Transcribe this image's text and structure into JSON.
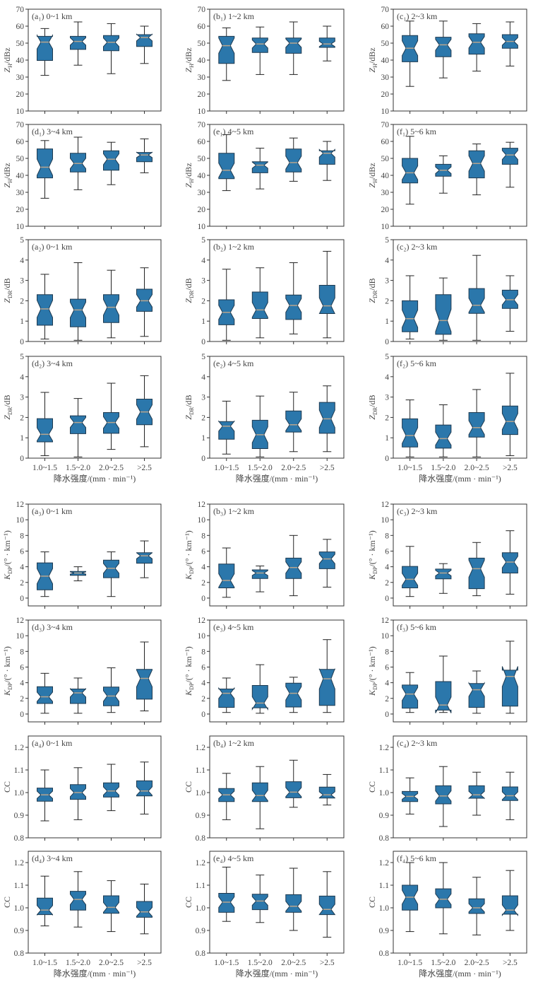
{
  "chart_data": {
    "type": "box",
    "categories": [
      "1.0~1.5",
      "1.5~2.0",
      "2.0~2.5",
      ">2.5"
    ],
    "xlabel": "降水强度/(mm · min⁻¹)",
    "stats_order": [
      "whisker_low",
      "q1",
      "median",
      "q3",
      "whisker_high"
    ],
    "box_color": "#2b77ab",
    "median_color": "#b8a58e",
    "variables": [
      {
        "ylabel": {
          "symbol": "Z",
          "sub": "H",
          "unit": "/dBz"
        },
        "ylim": [
          10,
          70
        ],
        "yticks": [
          "10",
          "20",
          "30",
          "40",
          "50",
          "60",
          "70"
        ]
      },
      {
        "ylabel": {
          "symbol": "Z",
          "sub": "DR",
          "unit": "/dB"
        },
        "ylim": [
          0,
          5
        ],
        "yticks": [
          "0",
          "1",
          "2",
          "3",
          "4",
          "5"
        ]
      },
      {
        "ylabel": {
          "symbol": "K",
          "sub": "DP",
          "unit": "/(° · km⁻¹)"
        },
        "ylim": [
          -1,
          12
        ],
        "yticks": [
          "0",
          "2",
          "4",
          "6",
          "8",
          "10",
          "12"
        ]
      },
      {
        "ylabel": {
          "symbol": "CC",
          "sub": "",
          "unit": ""
        },
        "ylim": [
          0.8,
          1.25
        ],
        "yticks": [
          "0.8",
          "0.9",
          "1.0",
          "1.1",
          "1.2"
        ]
      }
    ],
    "panels": [
      {
        "label": "(a₁) 0~1 km",
        "var": 0,
        "boxes": [
          [
            31,
            39.8,
            50.6,
            54,
            58.6
          ],
          [
            37,
            46.3,
            51,
            54,
            62.5
          ],
          [
            32,
            45.5,
            50.5,
            54.5,
            61.5
          ],
          [
            38,
            48,
            53.3,
            55,
            60
          ]
        ]
      },
      {
        "label": "(b₁) 1~2 km",
        "var": 0,
        "boxes": [
          [
            28,
            38,
            48.5,
            54,
            59
          ],
          [
            31.5,
            44.5,
            49.5,
            53,
            59.5
          ],
          [
            31.5,
            44,
            50,
            53,
            62.5
          ],
          [
            39.5,
            47.5,
            49.5,
            53,
            60
          ]
        ]
      },
      {
        "label": "(c₁) 2~3 km",
        "var": 0,
        "boxes": [
          [
            24.5,
            39,
            47,
            54.5,
            63
          ],
          [
            29.5,
            42,
            49,
            53.5,
            63
          ],
          [
            33.5,
            43.5,
            50.5,
            55.5,
            61.5
          ],
          [
            36.5,
            47,
            51,
            55,
            62.5
          ]
        ]
      },
      {
        "label": "(d₁) 3~4 km",
        "var": 0,
        "boxes": [
          [
            26.5,
            38.5,
            44.8,
            55.6,
            60.5
          ],
          [
            31.5,
            42,
            47,
            53,
            62.5
          ],
          [
            34.5,
            43,
            49.5,
            54.5,
            59.5
          ],
          [
            41.5,
            48,
            52,
            53.5,
            61.5
          ]
        ]
      },
      {
        "label": "(e₁) 4~5 km",
        "var": 0,
        "boxes": [
          [
            31,
            38,
            43,
            53,
            64
          ],
          [
            32,
            41.5,
            46,
            48,
            56
          ],
          [
            36.5,
            42,
            47.5,
            55.5,
            62
          ],
          [
            37,
            46.5,
            53,
            54.5,
            60
          ]
        ]
      },
      {
        "label": "(f₁) 5~6 km",
        "var": 0,
        "boxes": [
          [
            23,
            35.5,
            41.5,
            50,
            63
          ],
          [
            29.5,
            39.5,
            43,
            46.5,
            51.5
          ],
          [
            28.5,
            38.5,
            47,
            54.5,
            58.5
          ],
          [
            33,
            46.5,
            52,
            56,
            59.5
          ]
        ]
      },
      {
        "label": "(a₂) 0~1 km",
        "var": 1,
        "boxes": [
          [
            0.12,
            0.8,
            1.6,
            2.3,
            3.3
          ],
          [
            0.06,
            0.72,
            1.55,
            2.08,
            3.87
          ],
          [
            0.18,
            0.93,
            1.68,
            2.3,
            3.5
          ],
          [
            0.25,
            1.48,
            2.0,
            2.57,
            3.62
          ]
        ]
      },
      {
        "label": "(b₂) 1~2 km",
        "var": 1,
        "boxes": [
          [
            0.06,
            0.82,
            1.43,
            2.05,
            3.55
          ],
          [
            0.18,
            1.13,
            1.55,
            2.43,
            3.62
          ],
          [
            0.37,
            1.08,
            1.77,
            2.28,
            3.87
          ],
          [
            0.18,
            1.37,
            1.75,
            2.76,
            4.43
          ]
        ]
      },
      {
        "label": "(c₂) 2~3 km",
        "var": 1,
        "boxes": [
          [
            0.12,
            0.48,
            1.12,
            2.0,
            3.23
          ],
          [
            0.06,
            0.35,
            1.03,
            2.3,
            3.12
          ],
          [
            0.06,
            1.38,
            1.78,
            2.6,
            4.23
          ],
          [
            0.5,
            1.62,
            2.05,
            2.52,
            3.23
          ]
        ]
      },
      {
        "label": "(d₂) 3~4 km",
        "var": 1,
        "boxes": [
          [
            0.12,
            0.8,
            1.17,
            1.94,
            3.23
          ],
          [
            0.06,
            1.2,
            1.75,
            2.08,
            2.93
          ],
          [
            0.43,
            1.22,
            1.75,
            2.24,
            3.68
          ],
          [
            0.56,
            1.64,
            2.27,
            2.9,
            4.05
          ]
        ]
      },
      {
        "label": "(e₂) 4~5 km",
        "var": 1,
        "boxes": [
          [
            0.2,
            0.93,
            1.57,
            1.8,
            2.8
          ],
          [
            0.06,
            0.47,
            1.15,
            1.86,
            3.05
          ],
          [
            0.32,
            1.28,
            1.64,
            2.32,
            3.24
          ],
          [
            0.32,
            1.22,
            1.93,
            2.74,
            3.55
          ]
        ]
      },
      {
        "label": "(f₂) 5~6 km",
        "var": 1,
        "boxes": [
          [
            0.06,
            0.55,
            1.11,
            1.93,
            2.86
          ],
          [
            0.06,
            0.49,
            0.96,
            1.63,
            2.62
          ],
          [
            0.06,
            1.03,
            1.5,
            2.24,
            3.37
          ],
          [
            0.12,
            1.16,
            1.8,
            2.56,
            4.17
          ]
        ]
      },
      {
        "label": "(a₃) 0~1 km",
        "var": 2,
        "boxes": [
          [
            0.2,
            1.05,
            2.8,
            4.5,
            5.9
          ],
          [
            2.2,
            2.9,
            3.2,
            3.4,
            4.0
          ],
          [
            0.2,
            2.6,
            3.8,
            4.85,
            5.9
          ],
          [
            2.6,
            4.45,
            5.4,
            5.8,
            7.3
          ]
        ]
      },
      {
        "label": "(b₃) 1~2 km",
        "var": 2,
        "boxes": [
          [
            0.1,
            1.3,
            2.25,
            4.35,
            6.4
          ],
          [
            0.8,
            2.5,
            3.2,
            3.6,
            4.1
          ],
          [
            0.3,
            2.5,
            3.9,
            5.1,
            8.0
          ],
          [
            1.4,
            3.75,
            5.0,
            5.9,
            7.5
          ]
        ]
      },
      {
        "label": "(c₃) 2~3 km",
        "var": 2,
        "boxes": [
          [
            0.2,
            1.3,
            2.4,
            4.05,
            6.6
          ],
          [
            0.6,
            2.45,
            3.2,
            3.7,
            4.4
          ],
          [
            0.3,
            1.2,
            3.75,
            5.1,
            7.1
          ],
          [
            0.5,
            3.2,
            4.6,
            5.8,
            8.6
          ]
        ]
      },
      {
        "label": "(d₃) 3~4 km",
        "var": 2,
        "boxes": [
          [
            0.1,
            1.35,
            2.2,
            3.5,
            5.2
          ],
          [
            0.1,
            1.35,
            2.7,
            3.2,
            4.6
          ],
          [
            0.2,
            1.05,
            2.3,
            3.45,
            5.9
          ],
          [
            0.4,
            1.9,
            4.55,
            5.7,
            9.2
          ]
        ]
      },
      {
        "label": "(e₃) 4~5 km",
        "var": 2,
        "boxes": [
          [
            0.2,
            0.85,
            2.65,
            3.2,
            4.6
          ],
          [
            0.1,
            0.8,
            1.4,
            3.65,
            6.3
          ],
          [
            0.2,
            0.9,
            2.65,
            3.95,
            4.7
          ],
          [
            0.2,
            1.1,
            4.5,
            5.7,
            9.5
          ]
        ]
      },
      {
        "label": "(f₃) 5~6 km",
        "var": 2,
        "boxes": [
          [
            0.2,
            0.75,
            2.55,
            3.7,
            5.3
          ],
          [
            0.2,
            0.5,
            1.15,
            4.15,
            7.4
          ],
          [
            0.1,
            0.85,
            3.1,
            3.9,
            5.5
          ],
          [
            0.1,
            1.0,
            4.8,
            5.6,
            9.3
          ]
        ]
      },
      {
        "label": "(a₄) 0~1 km",
        "var": 3,
        "boxes": [
          [
            0.875,
            0.962,
            0.99,
            1.02,
            1.1
          ],
          [
            0.88,
            0.97,
            1.0,
            1.035,
            1.11
          ],
          [
            0.92,
            0.98,
            1.007,
            1.043,
            1.125
          ],
          [
            0.905,
            0.985,
            1.007,
            1.052,
            1.135
          ]
        ]
      },
      {
        "label": "(b₄) 1~2 km",
        "var": 3,
        "boxes": [
          [
            0.88,
            0.96,
            0.99,
            1.018,
            1.085
          ],
          [
            0.84,
            0.96,
            0.987,
            1.043,
            1.115
          ],
          [
            0.935,
            0.977,
            1.002,
            1.048,
            1.143
          ],
          [
            0.945,
            0.976,
            0.99,
            1.024,
            1.08
          ]
        ]
      },
      {
        "label": "(c₄) 2~3 km",
        "var": 3,
        "boxes": [
          [
            0.905,
            0.96,
            0.983,
            1.005,
            1.065
          ],
          [
            0.85,
            0.95,
            0.985,
            1.03,
            1.115
          ],
          [
            0.9,
            0.975,
            0.99,
            1.03,
            1.09
          ],
          [
            0.88,
            0.965,
            0.986,
            1.025,
            1.09
          ]
        ]
      },
      {
        "label": "(d₄) 3~4 km",
        "var": 3,
        "boxes": [
          [
            0.92,
            0.97,
            0.99,
            1.043,
            1.14
          ],
          [
            0.915,
            0.99,
            1.037,
            1.073,
            1.16
          ],
          [
            0.895,
            0.976,
            1.002,
            1.053,
            1.12
          ],
          [
            0.885,
            0.958,
            0.982,
            1.028,
            1.105
          ]
        ]
      },
      {
        "label": "(e₄) 4~5 km",
        "var": 3,
        "boxes": [
          [
            0.94,
            0.98,
            1.025,
            1.064,
            1.18
          ],
          [
            0.935,
            0.992,
            1.03,
            1.06,
            1.145
          ],
          [
            0.9,
            0.98,
            1.007,
            1.058,
            1.175
          ],
          [
            0.87,
            0.97,
            0.993,
            1.052,
            1.16
          ]
        ]
      },
      {
        "label": "(f₄) 5~6 km",
        "var": 3,
        "boxes": [
          [
            0.895,
            0.99,
            1.047,
            1.1,
            1.2
          ],
          [
            0.885,
            1.0,
            1.038,
            1.084,
            1.2
          ],
          [
            0.88,
            0.975,
            1.0,
            1.04,
            1.135
          ],
          [
            0.9,
            0.972,
            0.99,
            1.053,
            1.165
          ]
        ]
      }
    ]
  }
}
